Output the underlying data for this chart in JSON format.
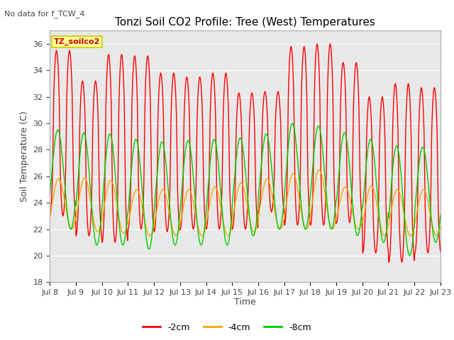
{
  "title": "Tonzi Soil CO2 Profile: Tree (West) Temperatures",
  "no_data_text": "No data for f_TCW_4",
  "ylabel": "Soil Temperature (C)",
  "xlabel": "Time",
  "ylim": [
    18,
    37
  ],
  "yticks": [
    18,
    20,
    22,
    24,
    26,
    28,
    30,
    32,
    34,
    36
  ],
  "legend_labels": [
    "-2cm",
    "-4cm",
    "-8cm"
  ],
  "legend_colors": [
    "#ff0000",
    "#ffa500",
    "#00cc00"
  ],
  "annotation_label": "TZ_soilco2",
  "annotation_color": "#ffff99",
  "annotation_border": "#cccc00",
  "bg_color": "#e8e8e8",
  "line_width": 1.0,
  "num_days": 15,
  "points_per_day": 48,
  "x_tick_labels": [
    "Jul 8",
    "Jul 9",
    "Jul 10",
    "Jul 11",
    "Jul 12",
    "Jul 13",
    "Jul 14",
    "Jul 15",
    "Jul 16",
    "Jul 17",
    "Jul 18",
    "Jul 19",
    "Jul 20",
    "Jul 21",
    "Jul 22",
    "Jul 23"
  ],
  "day_peaks_2cm": [
    35.5,
    33.2,
    35.2,
    35.1,
    33.8,
    33.5,
    33.8,
    32.3,
    32.4,
    35.8,
    36.0,
    34.6,
    32.0,
    33.0,
    32.7,
    32.7
  ],
  "day_troughs_2cm": [
    23.0,
    21.5,
    21.0,
    22.0,
    21.8,
    22.0,
    22.0,
    22.0,
    23.3,
    22.3,
    22.3,
    22.5,
    20.2,
    19.5,
    20.2,
    23.0
  ],
  "day_peaks_4cm": [
    25.8,
    25.9,
    25.7,
    25.0,
    25.0,
    25.0,
    25.2,
    25.5,
    25.8,
    26.2,
    26.5,
    25.2,
    25.3,
    25.0,
    25.0,
    25.0
  ],
  "day_troughs_4cm": [
    22.0,
    21.8,
    21.7,
    21.5,
    21.5,
    21.5,
    21.5,
    21.8,
    22.0,
    22.0,
    22.0,
    22.0,
    21.5,
    21.5,
    21.5,
    22.5
  ],
  "day_peaks_8cm": [
    29.5,
    29.3,
    29.2,
    28.8,
    28.6,
    28.7,
    28.8,
    28.9,
    29.2,
    30.0,
    29.8,
    29.3,
    28.8,
    28.3,
    28.2,
    28.5
  ],
  "day_troughs_8cm": [
    22.0,
    20.8,
    20.8,
    20.5,
    20.8,
    20.8,
    20.8,
    21.5,
    22.0,
    22.0,
    22.0,
    21.5,
    21.0,
    20.0,
    21.0,
    23.0
  ]
}
